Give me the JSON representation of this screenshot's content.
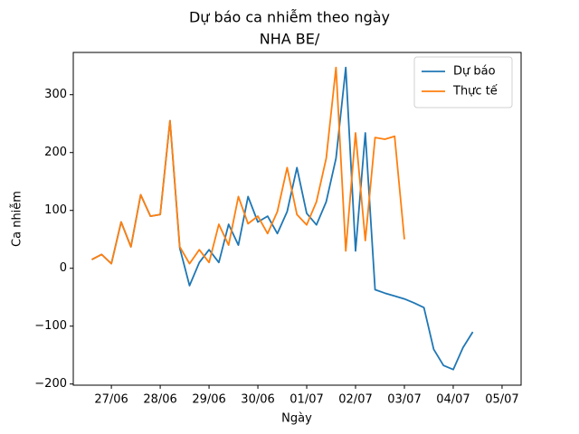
{
  "chart_data": {
    "type": "line",
    "title": "Dự báo ca nhiễm theo ngày",
    "subtitle": "NHA BE/",
    "x_label": "Ngày",
    "y_label": "Ca nhiễm",
    "x": [
      -0.4,
      -0.2,
      0,
      0.2,
      0.4,
      0.6,
      0.8,
      1.0,
      1.2,
      1.4,
      1.6,
      1.8,
      2.0,
      2.2,
      2.4,
      2.6,
      2.8,
      3.0,
      3.2,
      3.4,
      3.6,
      3.8,
      4.0,
      4.2,
      4.4,
      4.6,
      4.8,
      5.0,
      5.2,
      5.4,
      5.6,
      5.8,
      6.0,
      6.2,
      6.4,
      6.6,
      6.8,
      7.0,
      7.2,
      7.4
    ],
    "series": [
      {
        "name": "Dự báo",
        "color": "#1f77b4",
        "values": [
          15,
          24,
          8,
          80,
          37,
          127,
          90,
          93,
          255,
          35,
          -30,
          10,
          32,
          10,
          76,
          40,
          124,
          80,
          90,
          60,
          98,
          174,
          95,
          75,
          115,
          190,
          347,
          30,
          234,
          -37,
          -43,
          -48,
          -53,
          -60,
          -68,
          -140,
          -168,
          -175,
          -137,
          -110
        ]
      },
      {
        "name": "Thực tế",
        "color": "#ff7f0e",
        "values": [
          15,
          24,
          8,
          80,
          37,
          127,
          90,
          93,
          255,
          37,
          8,
          32,
          10,
          76,
          40,
          124,
          77,
          90,
          60,
          98,
          174,
          93,
          75,
          115,
          190,
          347,
          30,
          234,
          48,
          226,
          223,
          228,
          50,
          null,
          null,
          null,
          null,
          null,
          null,
          null
        ]
      }
    ],
    "xlim": [
      -0.78,
      8.39
    ],
    "xticks": [
      {
        "value": 0,
        "label": "27/06"
      },
      {
        "value": 1,
        "label": "28/06"
      },
      {
        "value": 2,
        "label": "29/06"
      },
      {
        "value": 3,
        "label": "30/06"
      },
      {
        "value": 4,
        "label": "01/07"
      },
      {
        "value": 5,
        "label": "02/07"
      },
      {
        "value": 6,
        "label": "03/07"
      },
      {
        "value": 7,
        "label": "04/07"
      },
      {
        "value": 8,
        "label": "05/07"
      }
    ],
    "ylim": [
      -202,
      373
    ],
    "yticks": [
      {
        "value": -200,
        "label": "−200"
      },
      {
        "value": -100,
        "label": "−100"
      },
      0,
      100,
      200,
      300
    ],
    "grid": false,
    "legend": "upper right"
  }
}
